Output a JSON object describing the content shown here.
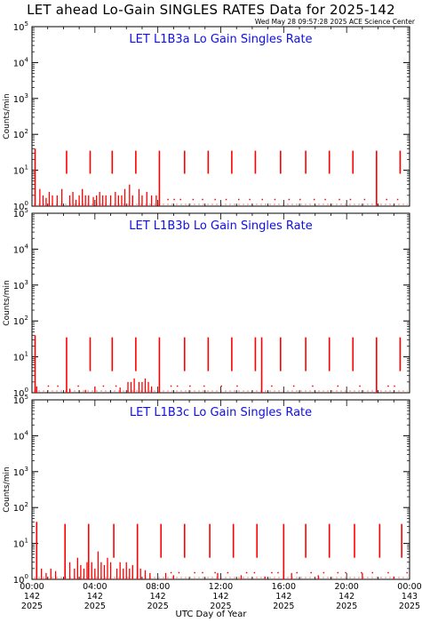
{
  "page": {
    "title": "LET ahead Lo-Gain SINGLES RATES Data for 2025-142",
    "timestamp": "Wed May 28 09:57:28 2025 ACE Science Center",
    "xlabel": "UTC Day of Year"
  },
  "colors": {
    "data": "#ff0000",
    "panel_title": "#1010e0",
    "axes": "#000000"
  },
  "chart_data": [
    {
      "type": "line",
      "title": "LET L1B3a Lo Gain Singles Rate",
      "ylabel": "Counts/min",
      "yscale": "log",
      "ylim": [
        1,
        100000
      ],
      "yticks": [
        {
          "v": 1,
          "base": "10",
          "exp": "0"
        },
        {
          "v": 10,
          "base": "10",
          "exp": "1"
        },
        {
          "v": 100,
          "base": "10",
          "exp": "2"
        },
        {
          "v": 1000,
          "base": "10",
          "exp": "3"
        },
        {
          "v": 10000,
          "base": "10",
          "exp": "4"
        },
        {
          "v": 100000,
          "base": "10",
          "exp": "5"
        }
      ],
      "xlim": [
        0,
        24
      ],
      "spikes": [
        {
          "t": 0.2,
          "top": 40,
          "bottom": 1
        },
        {
          "t": 2.2,
          "top": 35,
          "bottom": 8
        },
        {
          "t": 3.7,
          "top": 35,
          "bottom": 8
        },
        {
          "t": 5.1,
          "top": 35,
          "bottom": 8
        },
        {
          "t": 6.6,
          "top": 35,
          "bottom": 8
        },
        {
          "t": 8.1,
          "top": 35,
          "bottom": 1
        },
        {
          "t": 9.7,
          "top": 35,
          "bottom": 8
        },
        {
          "t": 11.2,
          "top": 35,
          "bottom": 8
        },
        {
          "t": 12.7,
          "top": 35,
          "bottom": 8
        },
        {
          "t": 14.2,
          "top": 35,
          "bottom": 8
        },
        {
          "t": 15.8,
          "top": 35,
          "bottom": 8
        },
        {
          "t": 17.4,
          "top": 35,
          "bottom": 8
        },
        {
          "t": 18.9,
          "top": 35,
          "bottom": 8
        },
        {
          "t": 20.4,
          "top": 35,
          "bottom": 8
        },
        {
          "t": 21.9,
          "top": 35,
          "bottom": 1
        },
        {
          "t": 23.4,
          "top": 35,
          "bottom": 8
        }
      ],
      "noise": [
        {
          "t": 0.5,
          "v": 3
        },
        {
          "t": 0.7,
          "v": 2
        },
        {
          "t": 0.9,
          "v": 1.7
        },
        {
          "t": 1.1,
          "v": 2.5
        },
        {
          "t": 1.3,
          "v": 2
        },
        {
          "t": 1.6,
          "v": 2
        },
        {
          "t": 1.9,
          "v": 3
        },
        {
          "t": 2.4,
          "v": 2
        },
        {
          "t": 2.6,
          "v": 2.5
        },
        {
          "t": 2.8,
          "v": 1.5
        },
        {
          "t": 3.0,
          "v": 2
        },
        {
          "t": 3.2,
          "v": 3
        },
        {
          "t": 3.4,
          "v": 2
        },
        {
          "t": 3.6,
          "v": 2
        },
        {
          "t": 3.9,
          "v": 1.8
        },
        {
          "t": 4.1,
          "v": 2
        },
        {
          "t": 4.3,
          "v": 2.5
        },
        {
          "t": 4.5,
          "v": 2
        },
        {
          "t": 4.7,
          "v": 2
        },
        {
          "t": 5.0,
          "v": 2
        },
        {
          "t": 5.3,
          "v": 2.5
        },
        {
          "t": 5.5,
          "v": 2
        },
        {
          "t": 5.7,
          "v": 2
        },
        {
          "t": 5.9,
          "v": 3
        },
        {
          "t": 6.2,
          "v": 4
        },
        {
          "t": 6.4,
          "v": 2
        },
        {
          "t": 6.8,
          "v": 3
        },
        {
          "t": 7.0,
          "v": 2
        },
        {
          "t": 7.3,
          "v": 2.5
        },
        {
          "t": 7.6,
          "v": 2
        },
        {
          "t": 7.9,
          "v": 2
        }
      ],
      "dots": [
        8.6,
        9.0,
        9.4,
        10.2,
        10.8,
        11.6,
        12.3,
        13.1,
        13.8,
        14.6,
        15.4,
        16.3,
        17.0,
        17.9,
        18.6,
        19.5,
        20.2,
        21.1,
        22.5,
        23.2
      ]
    },
    {
      "type": "line",
      "title": "LET L1B3b Lo Gain Singles Rate",
      "ylabel": "Counts/min",
      "yscale": "log",
      "ylim": [
        1,
        100000
      ],
      "yticks": [
        {
          "v": 1,
          "base": "10",
          "exp": "0"
        },
        {
          "v": 10,
          "base": "10",
          "exp": "1"
        },
        {
          "v": 100,
          "base": "10",
          "exp": "2"
        },
        {
          "v": 1000,
          "base": "10",
          "exp": "3"
        },
        {
          "v": 10000,
          "base": "10",
          "exp": "4"
        },
        {
          "v": 100000,
          "base": "10",
          "exp": "5"
        }
      ],
      "xlim": [
        0,
        24
      ],
      "spikes": [
        {
          "t": 0.2,
          "top": 40,
          "bottom": 1
        },
        {
          "t": 2.2,
          "top": 35,
          "bottom": 1
        },
        {
          "t": 3.7,
          "top": 35,
          "bottom": 4
        },
        {
          "t": 5.1,
          "top": 35,
          "bottom": 4
        },
        {
          "t": 6.6,
          "top": 35,
          "bottom": 4
        },
        {
          "t": 8.1,
          "top": 35,
          "bottom": 1
        },
        {
          "t": 9.7,
          "top": 35,
          "bottom": 4
        },
        {
          "t": 11.2,
          "top": 35,
          "bottom": 4
        },
        {
          "t": 12.7,
          "top": 35,
          "bottom": 4
        },
        {
          "t": 14.2,
          "top": 35,
          "bottom": 4
        },
        {
          "t": 14.6,
          "top": 35,
          "bottom": 1
        },
        {
          "t": 15.8,
          "top": 35,
          "bottom": 4
        },
        {
          "t": 17.4,
          "top": 35,
          "bottom": 4
        },
        {
          "t": 18.9,
          "top": 35,
          "bottom": 4
        },
        {
          "t": 20.4,
          "top": 35,
          "bottom": 4
        },
        {
          "t": 21.9,
          "top": 35,
          "bottom": 1
        },
        {
          "t": 23.4,
          "top": 35,
          "bottom": 4
        }
      ],
      "noise": [
        {
          "t": 0.3,
          "v": 1.5
        },
        {
          "t": 2.4,
          "v": 1.3
        },
        {
          "t": 3.4,
          "v": 1.2
        },
        {
          "t": 4.0,
          "v": 1.5
        },
        {
          "t": 5.6,
          "v": 1.4
        },
        {
          "t": 6.1,
          "v": 2
        },
        {
          "t": 6.3,
          "v": 2
        },
        {
          "t": 6.5,
          "v": 2.5
        },
        {
          "t": 6.8,
          "v": 2
        },
        {
          "t": 7.0,
          "v": 2
        },
        {
          "t": 7.2,
          "v": 2.5
        },
        {
          "t": 7.4,
          "v": 2
        },
        {
          "t": 7.6,
          "v": 1.5
        }
      ],
      "dots": [
        1.0,
        1.6,
        2.9,
        4.5,
        5.3,
        8.8,
        9.2,
        10.0,
        10.9,
        12.0,
        13.0,
        15.2,
        16.6,
        17.8,
        19.4,
        20.8,
        22.6,
        23.0
      ]
    },
    {
      "type": "line",
      "title": "LET L1B3c Lo Gain Singles Rate",
      "ylabel": "Counts/min",
      "yscale": "log",
      "ylim": [
        1,
        100000
      ],
      "yticks": [
        {
          "v": 1,
          "base": "10",
          "exp": "0"
        },
        {
          "v": 10,
          "base": "10",
          "exp": "1"
        },
        {
          "v": 100,
          "base": "10",
          "exp": "2"
        },
        {
          "v": 1000,
          "base": "10",
          "exp": "3"
        },
        {
          "v": 10000,
          "base": "10",
          "exp": "4"
        },
        {
          "v": 100000,
          "base": "10",
          "exp": "5"
        }
      ],
      "xlim": [
        0,
        24
      ],
      "xticks": [
        {
          "t": 0,
          "time": "00:00",
          "doy": "142",
          "year": "2025"
        },
        {
          "t": 4,
          "time": "04:00",
          "doy": "142",
          "year": "2025"
        },
        {
          "t": 8,
          "time": "08:00",
          "doy": "142",
          "year": "2025"
        },
        {
          "t": 12,
          "time": "12:00",
          "doy": "142",
          "year": "2025"
        },
        {
          "t": 16,
          "time": "16:00",
          "doy": "142",
          "year": "2025"
        },
        {
          "t": 20,
          "time": "20:00",
          "doy": "142",
          "year": "2025"
        },
        {
          "t": 24,
          "time": "00:00",
          "doy": "143",
          "year": "2025"
        }
      ],
      "spikes": [
        {
          "t": 0.3,
          "top": 40,
          "bottom": 1
        },
        {
          "t": 2.1,
          "top": 35,
          "bottom": 1
        },
        {
          "t": 3.6,
          "top": 35,
          "bottom": 1
        },
        {
          "t": 5.2,
          "top": 35,
          "bottom": 4
        },
        {
          "t": 6.7,
          "top": 35,
          "bottom": 1
        },
        {
          "t": 8.2,
          "top": 35,
          "bottom": 4
        },
        {
          "t": 9.7,
          "top": 35,
          "bottom": 4
        },
        {
          "t": 11.3,
          "top": 35,
          "bottom": 4
        },
        {
          "t": 12.8,
          "top": 35,
          "bottom": 4
        },
        {
          "t": 14.3,
          "top": 35,
          "bottom": 4
        },
        {
          "t": 16.0,
          "top": 35,
          "bottom": 1
        },
        {
          "t": 17.4,
          "top": 35,
          "bottom": 4
        },
        {
          "t": 18.9,
          "top": 35,
          "bottom": 4
        },
        {
          "t": 20.5,
          "top": 35,
          "bottom": 4
        },
        {
          "t": 22.1,
          "top": 35,
          "bottom": 4
        },
        {
          "t": 23.5,
          "top": 35,
          "bottom": 4
        }
      ],
      "noise": [
        {
          "t": 0.6,
          "v": 2
        },
        {
          "t": 0.9,
          "v": 1.5
        },
        {
          "t": 1.2,
          "v": 2
        },
        {
          "t": 1.5,
          "v": 1.7
        },
        {
          "t": 2.4,
          "v": 3
        },
        {
          "t": 2.7,
          "v": 2
        },
        {
          "t": 2.9,
          "v": 4
        },
        {
          "t": 3.1,
          "v": 2.5
        },
        {
          "t": 3.3,
          "v": 2
        },
        {
          "t": 3.5,
          "v": 3
        },
        {
          "t": 3.8,
          "v": 3
        },
        {
          "t": 4.0,
          "v": 2
        },
        {
          "t": 4.2,
          "v": 6
        },
        {
          "t": 4.4,
          "v": 3
        },
        {
          "t": 4.6,
          "v": 2.5
        },
        {
          "t": 4.8,
          "v": 4
        },
        {
          "t": 5.0,
          "v": 3
        },
        {
          "t": 5.4,
          "v": 2
        },
        {
          "t": 5.6,
          "v": 3
        },
        {
          "t": 5.8,
          "v": 2
        },
        {
          "t": 6.0,
          "v": 3
        },
        {
          "t": 6.2,
          "v": 2
        },
        {
          "t": 6.4,
          "v": 2.5
        },
        {
          "t": 6.9,
          "v": 2
        },
        {
          "t": 7.2,
          "v": 1.8
        },
        {
          "t": 7.5,
          "v": 1.5
        },
        {
          "t": 8.5,
          "v": 1.5
        },
        {
          "t": 9.0,
          "v": 1.3
        },
        {
          "t": 11.8,
          "v": 1.5
        },
        {
          "t": 13.3,
          "v": 1.3
        },
        {
          "t": 14.8,
          "v": 1.2
        },
        {
          "t": 16.5,
          "v": 1.5
        },
        {
          "t": 18.2,
          "v": 1.3
        },
        {
          "t": 21.0,
          "v": 1.5
        },
        {
          "t": 23.0,
          "v": 1.2
        }
      ],
      "dots": [
        8.8,
        9.3,
        10.3,
        10.8,
        11.6,
        12.4,
        13.6,
        14.1,
        15.2,
        15.6,
        16.8,
        17.7,
        18.5,
        19.4,
        19.9,
        20.9,
        21.6,
        22.6,
        23.8
      ]
    }
  ]
}
